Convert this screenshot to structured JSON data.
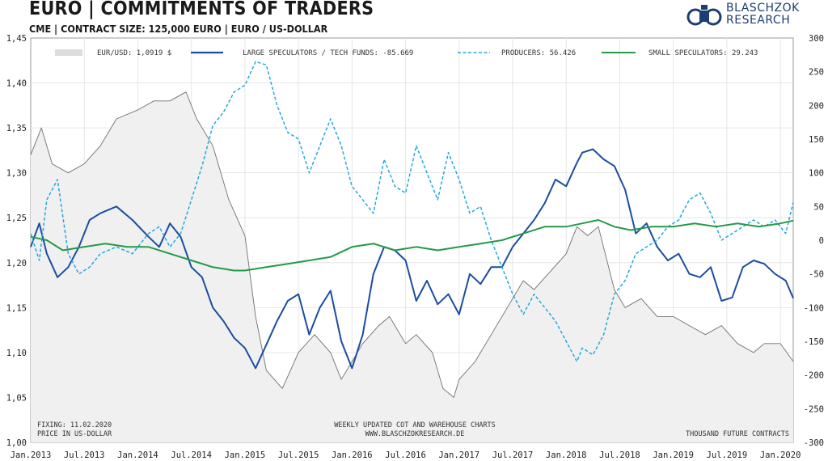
{
  "header": {
    "title": "EURO | COMMITMENTS OF TRADERS",
    "subtitle": "CME | CONTRACT SIZE: 125,000 EURO | EURO / US-DOLLAR"
  },
  "logo": {
    "line1": "BLASCHZOK",
    "line2": "RESEARCH"
  },
  "notes": {
    "fixing": "FIXING: 11.02.2020",
    "price": "PRICE IN US-DOLLAR",
    "weekly": "WEEKLY UPDATED COT AND WAREHOUSE CHARTS",
    "url": "WWW.BLASCHZOKRESEARCH.DE",
    "units": "THOUSAND FUTURE CONTRACTS"
  },
  "colors": {
    "eur": "#c8c8c8",
    "eur_line": "#707070",
    "large": "#1a4da1",
    "producers": "#24a8e0",
    "small": "#259a47"
  },
  "chart_data": {
    "type": "line",
    "x_tick_labels": [
      "Jan.2013",
      "Jul.2013",
      "Jan.2014",
      "Jul.2014",
      "Jan.2015",
      "Jul.2015",
      "Jan.2016",
      "Jul.2016",
      "Jan.2017",
      "Jul.2017",
      "Jan.2018",
      "Jul.2018",
      "Jan.2019",
      "Jul.2019",
      "Jan.2020"
    ],
    "x_range": [
      2013.0,
      2020.12
    ],
    "y_left": {
      "min": 1.0,
      "max": 1.45,
      "ticks": [
        "1,45",
        "1,40",
        "1,35",
        "1,30",
        "1,25",
        "1,20",
        "1,15",
        "1,10",
        "1,05",
        "1,00"
      ]
    },
    "y_right": {
      "min": -300,
      "max": 300,
      "ticks": [
        "300",
        "250",
        "200",
        "150",
        "100",
        "50",
        "0",
        "-50",
        "-100",
        "-150",
        "-200",
        "-250",
        "-300"
      ]
    },
    "legend": [
      "EUR/USD: 1,0919 $",
      "LARGE SPECULATORS / TECH FUNDS: -85.669",
      "PRODUCERS: 56.426",
      "SMALL SPECULATORS: 29.243"
    ],
    "series": [
      {
        "name": "EUR/USD",
        "axis": "left",
        "style": "area",
        "x": [
          2013.0,
          2013.1,
          2013.2,
          2013.35,
          2013.5,
          2013.65,
          2013.8,
          2014.0,
          2014.15,
          2014.3,
          2014.45,
          2014.55,
          2014.7,
          2014.85,
          2015.0,
          2015.1,
          2015.2,
          2015.35,
          2015.5,
          2015.65,
          2015.8,
          2015.9,
          2016.0,
          2016.1,
          2016.25,
          2016.35,
          2016.5,
          2016.6,
          2016.75,
          2016.85,
          2016.95,
          2017.0,
          2017.15,
          2017.3,
          2017.45,
          2017.6,
          2017.7,
          2017.85,
          2018.0,
          2018.1,
          2018.2,
          2018.3,
          2018.45,
          2018.55,
          2018.7,
          2018.85,
          2019.0,
          2019.15,
          2019.3,
          2019.45,
          2019.6,
          2019.75,
          2019.85,
          2020.0,
          2020.12
        ],
        "values": [
          1.32,
          1.35,
          1.31,
          1.3,
          1.31,
          1.33,
          1.36,
          1.37,
          1.38,
          1.38,
          1.39,
          1.36,
          1.33,
          1.27,
          1.23,
          1.14,
          1.08,
          1.06,
          1.1,
          1.12,
          1.1,
          1.07,
          1.09,
          1.11,
          1.13,
          1.14,
          1.11,
          1.12,
          1.1,
          1.06,
          1.05,
          1.07,
          1.09,
          1.12,
          1.15,
          1.18,
          1.17,
          1.19,
          1.21,
          1.24,
          1.23,
          1.24,
          1.17,
          1.15,
          1.16,
          1.14,
          1.14,
          1.13,
          1.12,
          1.13,
          1.11,
          1.1,
          1.11,
          1.11,
          1.09
        ]
      },
      {
        "name": "Large Speculators / Tech Funds",
        "axis": "right",
        "style": "solid",
        "x": [
          2013.0,
          2013.08,
          2013.15,
          2013.25,
          2013.35,
          2013.45,
          2013.55,
          2013.65,
          2013.8,
          2013.95,
          2014.1,
          2014.2,
          2014.3,
          2014.4,
          2014.5,
          2014.6,
          2014.7,
          2014.8,
          2014.9,
          2015.0,
          2015.1,
          2015.2,
          2015.3,
          2015.4,
          2015.5,
          2015.6,
          2015.7,
          2015.8,
          2015.9,
          2016.0,
          2016.1,
          2016.2,
          2016.3,
          2016.4,
          2016.5,
          2016.6,
          2016.7,
          2016.8,
          2016.9,
          2017.0,
          2017.1,
          2017.2,
          2017.3,
          2017.4,
          2017.5,
          2017.6,
          2017.7,
          2017.8,
          2017.9,
          2018.0,
          2018.1,
          2018.15,
          2018.25,
          2018.35,
          2018.45,
          2018.55,
          2018.65,
          2018.75,
          2018.85,
          2018.95,
          2019.05,
          2019.15,
          2019.25,
          2019.35,
          2019.45,
          2019.55,
          2019.65,
          2019.75,
          2019.85,
          2019.95,
          2020.05,
          2020.12
        ],
        "values": [
          -10,
          25,
          -20,
          -55,
          -40,
          -10,
          30,
          40,
          50,
          30,
          5,
          -10,
          25,
          5,
          -40,
          -55,
          -100,
          -120,
          -145,
          -160,
          -190,
          -155,
          -120,
          -90,
          -80,
          -140,
          -100,
          -75,
          -150,
          -190,
          -140,
          -50,
          -10,
          -15,
          -30,
          -90,
          -60,
          -95,
          -80,
          -110,
          -50,
          -65,
          -40,
          -40,
          -10,
          10,
          30,
          55,
          90,
          80,
          115,
          130,
          135,
          120,
          110,
          75,
          10,
          25,
          -10,
          -30,
          -20,
          -50,
          -55,
          -40,
          -90,
          -85,
          -40,
          -30,
          -35,
          -50,
          -60,
          -86
        ]
      },
      {
        "name": "Producers",
        "axis": "right",
        "style": "dashed",
        "x": [
          2013.0,
          2013.08,
          2013.15,
          2013.25,
          2013.35,
          2013.45,
          2013.55,
          2013.65,
          2013.8,
          2013.95,
          2014.1,
          2014.2,
          2014.3,
          2014.4,
          2014.5,
          2014.6,
          2014.7,
          2014.8,
          2014.9,
          2015.0,
          2015.1,
          2015.2,
          2015.3,
          2015.4,
          2015.5,
          2015.6,
          2015.7,
          2015.8,
          2015.9,
          2016.0,
          2016.1,
          2016.2,
          2016.3,
          2016.4,
          2016.5,
          2016.6,
          2016.7,
          2016.8,
          2016.9,
          2017.0,
          2017.1,
          2017.2,
          2017.3,
          2017.4,
          2017.5,
          2017.6,
          2017.7,
          2017.8,
          2017.9,
          2018.0,
          2018.1,
          2018.15,
          2018.25,
          2018.35,
          2018.45,
          2018.55,
          2018.65,
          2018.75,
          2018.85,
          2018.95,
          2019.05,
          2019.15,
          2019.25,
          2019.35,
          2019.45,
          2019.55,
          2019.65,
          2019.75,
          2019.85,
          2019.95,
          2020.05,
          2020.12
        ],
        "values": [
          10,
          -30,
          60,
          90,
          -20,
          -50,
          -40,
          -20,
          -10,
          -20,
          10,
          20,
          -10,
          10,
          60,
          110,
          170,
          190,
          220,
          230,
          265,
          260,
          200,
          160,
          150,
          100,
          140,
          180,
          140,
          80,
          60,
          40,
          120,
          80,
          70,
          140,
          100,
          60,
          130,
          90,
          40,
          50,
          0,
          -40,
          -80,
          -110,
          -80,
          -100,
          -120,
          -150,
          -180,
          -160,
          -170,
          -140,
          -80,
          -60,
          -20,
          -10,
          0,
          20,
          30,
          60,
          70,
          40,
          0,
          10,
          20,
          30,
          20,
          30,
          10,
          56
        ]
      },
      {
        "name": "Small Speculators",
        "axis": "right",
        "style": "solid",
        "x": [
          2013.0,
          2013.15,
          2013.3,
          2013.5,
          2013.7,
          2013.9,
          2014.1,
          2014.3,
          2014.5,
          2014.7,
          2014.9,
          2015.0,
          2015.2,
          2015.4,
          2015.6,
          2015.8,
          2016.0,
          2016.2,
          2016.4,
          2016.6,
          2016.8,
          2017.0,
          2017.2,
          2017.4,
          2017.6,
          2017.8,
          2018.0,
          2018.15,
          2018.3,
          2018.45,
          2018.6,
          2018.8,
          2019.0,
          2019.2,
          2019.4,
          2019.6,
          2019.8,
          2020.0,
          2020.12
        ],
        "values": [
          5,
          0,
          -15,
          -10,
          -5,
          -10,
          -10,
          -20,
          -30,
          -40,
          -45,
          -45,
          -40,
          -35,
          -30,
          -25,
          -10,
          -5,
          -15,
          -10,
          -15,
          -10,
          -5,
          0,
          10,
          20,
          20,
          25,
          30,
          20,
          15,
          20,
          20,
          25,
          20,
          25,
          20,
          25,
          29
        ]
      }
    ]
  }
}
